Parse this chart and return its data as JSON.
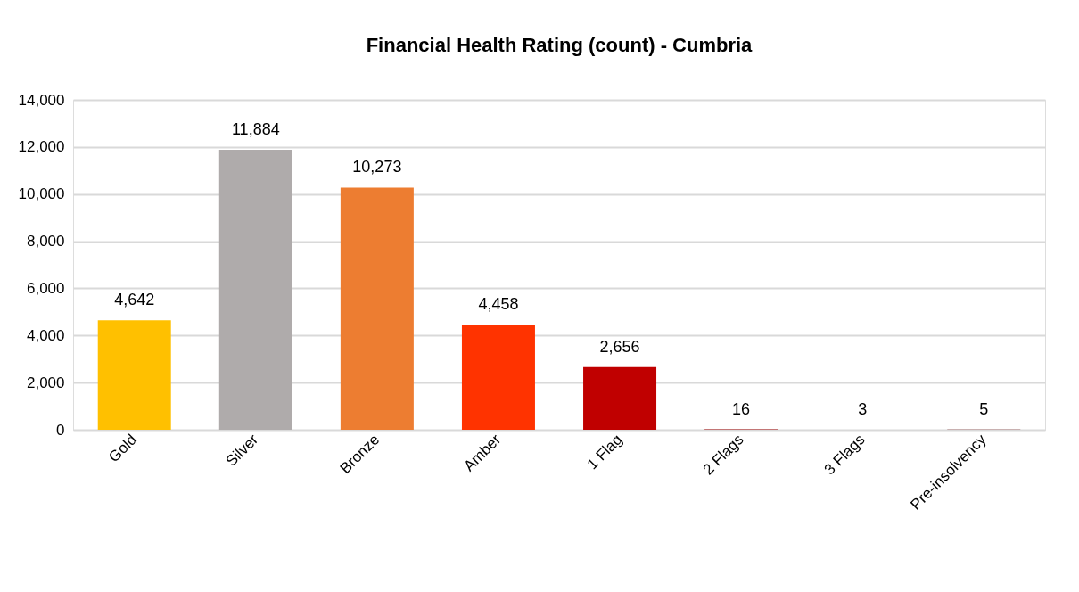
{
  "chart_data": {
    "type": "bar",
    "title": "Financial Health Rating (count) - Cumbria",
    "categories": [
      "Gold",
      "Silver",
      "Bronze",
      "Amber",
      "1 Flag",
      "2 Flags",
      "3 Flags",
      "Pre-insolvency"
    ],
    "values": [
      4642,
      11884,
      10273,
      4458,
      2656,
      16,
      3,
      5
    ],
    "value_labels": [
      "4,642",
      "11,884",
      "10,273",
      "4,458",
      "2,656",
      "16",
      "3",
      "5"
    ],
    "colors": [
      "#ffc000",
      "#afabab",
      "#ed7d31",
      "#ff3300",
      "#c00000",
      "#990000",
      "#800000",
      "#600000"
    ],
    "ylim": [
      0,
      14000
    ],
    "yticks": [
      0,
      {
        "value": 2000,
        "label": "2,000"
      },
      {
        "value": 4000,
        "label": "4,000"
      },
      {
        "value": 6000,
        "label": "6,000"
      },
      {
        "value": 8000,
        "label": "8,000"
      },
      {
        "value": 10000,
        "label": "10,000"
      },
      {
        "value": 12000,
        "label": "12,000"
      },
      {
        "value": 14000,
        "label": "14,000"
      }
    ],
    "grid": "y"
  }
}
